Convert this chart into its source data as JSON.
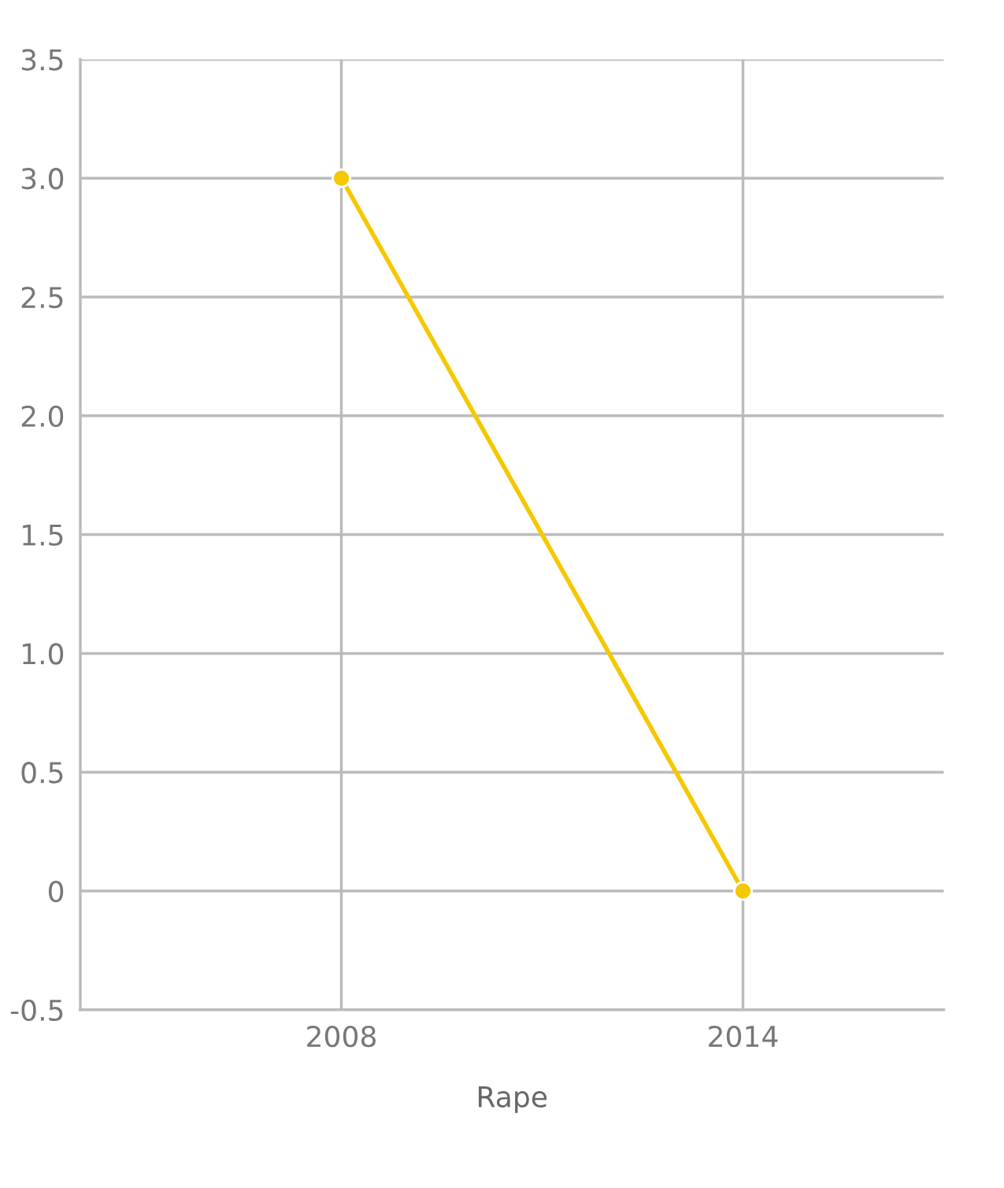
{
  "chart_data": {
    "type": "line",
    "xlabel": "Rape",
    "categories": [
      "2008",
      "2014"
    ],
    "series": [
      {
        "color": "#f5c800",
        "values": [
          3.0,
          0
        ]
      }
    ],
    "ylim": [
      -0.5,
      3.5
    ],
    "yticks": [
      {
        "value": -0.5,
        "label": "-0.5"
      },
      0,
      {
        "value": 0.5,
        "label": "0.5"
      },
      {
        "value": 1.0,
        "label": "1.0"
      },
      {
        "value": 1.5,
        "label": "1.5"
      },
      {
        "value": 2.0,
        "label": "2.0"
      },
      {
        "value": 2.5,
        "label": "2.5"
      },
      {
        "value": 3.0,
        "label": "3.0"
      },
      {
        "value": 3.5,
        "label": "3.5"
      }
    ],
    "grid": true,
    "marker": "circle",
    "line_style": "solid"
  }
}
